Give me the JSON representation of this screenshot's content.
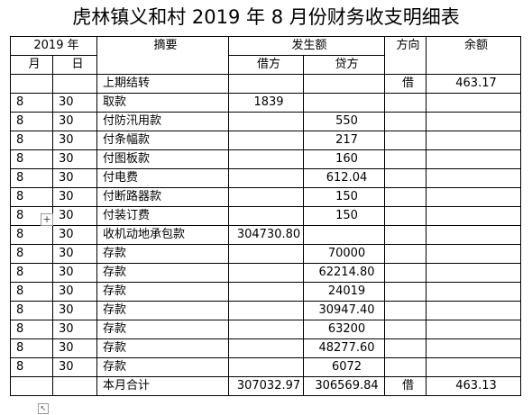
{
  "title": "虎林镇义和村 2019 年 8 月份财务收支明细表",
  "header": {
    "year": "2019 年",
    "month": "月",
    "day": "日",
    "summary": "摘要",
    "amount": "发生额",
    "debit": "借方",
    "credit": "贷方",
    "direction": "方向",
    "balance": "余额"
  },
  "rows": [
    {
      "month": "",
      "day": "",
      "summary": "上期结转",
      "debit": "",
      "credit": "",
      "direction": "借",
      "balance": "463.17"
    },
    {
      "month": "8",
      "day": "30",
      "summary": "取款",
      "debit": "1839",
      "credit": "",
      "direction": "",
      "balance": ""
    },
    {
      "month": "8",
      "day": "30",
      "summary": "付防汛用款",
      "debit": "",
      "credit": "550",
      "direction": "",
      "balance": ""
    },
    {
      "month": "8",
      "day": "30",
      "summary": "付条幅款",
      "debit": "",
      "credit": "217",
      "direction": "",
      "balance": ""
    },
    {
      "month": "8",
      "day": "30",
      "summary": "付图板款",
      "debit": "",
      "credit": "160",
      "direction": "",
      "balance": ""
    },
    {
      "month": "8",
      "day": "30",
      "summary": "付电费",
      "debit": "",
      "credit": "612.04",
      "direction": "",
      "balance": ""
    },
    {
      "month": "8",
      "day": "30",
      "summary": "付断路器款",
      "debit": "",
      "credit": "150",
      "direction": "",
      "balance": ""
    },
    {
      "month": "8",
      "day": "30",
      "summary": "付装订费",
      "debit": "",
      "credit": "150",
      "direction": "",
      "balance": ""
    },
    {
      "month": "8",
      "day": "30",
      "summary": "收机动地承包款",
      "debit": "304730.80",
      "credit": "",
      "direction": "",
      "balance": ""
    },
    {
      "month": "8",
      "day": "30",
      "summary": "存款",
      "debit": "",
      "credit": "70000",
      "direction": "",
      "balance": ""
    },
    {
      "month": "8",
      "day": "30",
      "summary": "存款",
      "debit": "",
      "credit": "62214.80",
      "direction": "",
      "balance": ""
    },
    {
      "month": "8",
      "day": "30",
      "summary": "存款",
      "debit": "",
      "credit": "24019",
      "direction": "",
      "balance": ""
    },
    {
      "month": "8",
      "day": "30",
      "summary": "存款",
      "debit": "",
      "credit": "30947.40",
      "direction": "",
      "balance": ""
    },
    {
      "month": "8",
      "day": "30",
      "summary": "存款",
      "debit": "",
      "credit": "63200",
      "direction": "",
      "balance": ""
    },
    {
      "month": "8",
      "day": "30",
      "summary": "存款",
      "debit": "",
      "credit": "48277.60",
      "direction": "",
      "balance": ""
    },
    {
      "month": "8",
      "day": "30",
      "summary": "存款",
      "debit": "",
      "credit": "6072",
      "direction": "",
      "balance": ""
    },
    {
      "month": "",
      "day": "",
      "summary": "本月合计",
      "debit": "307032.97",
      "credit": "306569.84",
      "direction": "借",
      "balance": "463.13"
    }
  ],
  "handles": {
    "move": "+",
    "resize": "↖"
  }
}
